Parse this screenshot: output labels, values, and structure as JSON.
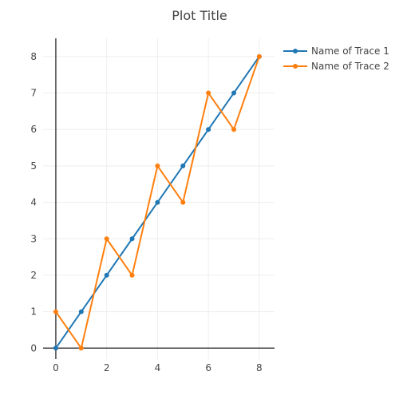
{
  "chart_data": {
    "type": "line",
    "title": "Plot Title",
    "xlabel": "",
    "ylabel": "",
    "x": [
      0,
      1,
      2,
      3,
      4,
      5,
      6,
      7,
      8
    ],
    "xlim": [
      -0.5,
      8.6
    ],
    "ylim": [
      -0.3,
      8.5
    ],
    "x_ticks": [
      0,
      2,
      4,
      6,
      8
    ],
    "y_ticks": [
      0,
      1,
      2,
      3,
      4,
      5,
      6,
      7,
      8
    ],
    "grid": true,
    "legend_position": "top-right",
    "series": [
      {
        "name": "Name of Trace 1",
        "color": "#1f77b4",
        "values": [
          0,
          1,
          2,
          3,
          4,
          5,
          6,
          7,
          8
        ]
      },
      {
        "name": "Name of Trace 2",
        "color": "#ff7f0e",
        "values": [
          1,
          0,
          3,
          2,
          5,
          4,
          7,
          6,
          8
        ]
      }
    ]
  },
  "colors": {
    "grid": "#eeeeee",
    "axis": "#444444",
    "text": "#444444"
  }
}
